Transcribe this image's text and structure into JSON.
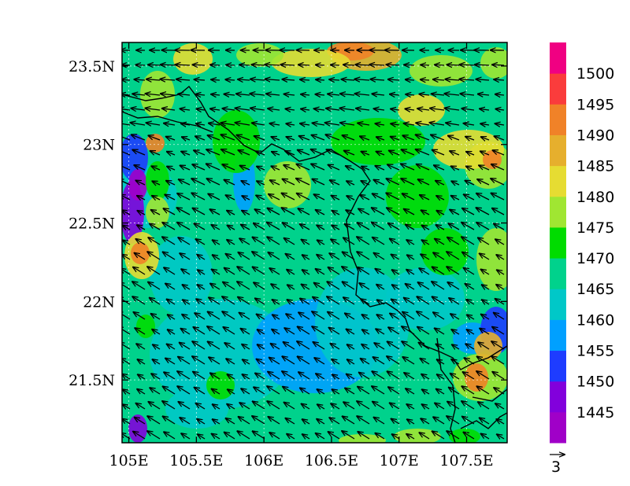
{
  "map": {
    "longitude_ticks": [
      "105E",
      "105.5E",
      "106E",
      "106.5E",
      "107E",
      "107.5E"
    ],
    "latitude_ticks": [
      "23.5N",
      "23N",
      "22.5N",
      "22N",
      "21.5N"
    ],
    "lon_range": [
      104.95,
      107.8
    ],
    "lat_range": [
      21.1,
      23.65
    ],
    "grid": "dotted white",
    "field": "contour fill",
    "vectors": "wind arrows pointing mostly northwest, westward in the north"
  },
  "colorbar": {
    "orientation": "vertical",
    "position": "right",
    "levels": [
      "1445",
      "1450",
      "1455",
      "1460",
      "1465",
      "1470",
      "1475",
      "1480",
      "1485",
      "1490",
      "1495",
      "1500"
    ],
    "colors": [
      "#a000c8",
      "#8200dc",
      "#1e3cff",
      "#00a0ff",
      "#00c8c8",
      "#00d28c",
      "#00dc00",
      "#a0e632",
      "#e6dc32",
      "#e6af2d",
      "#f08228",
      "#fa3c3c",
      "#f00082"
    ]
  },
  "reference_vector": {
    "label": "3"
  }
}
